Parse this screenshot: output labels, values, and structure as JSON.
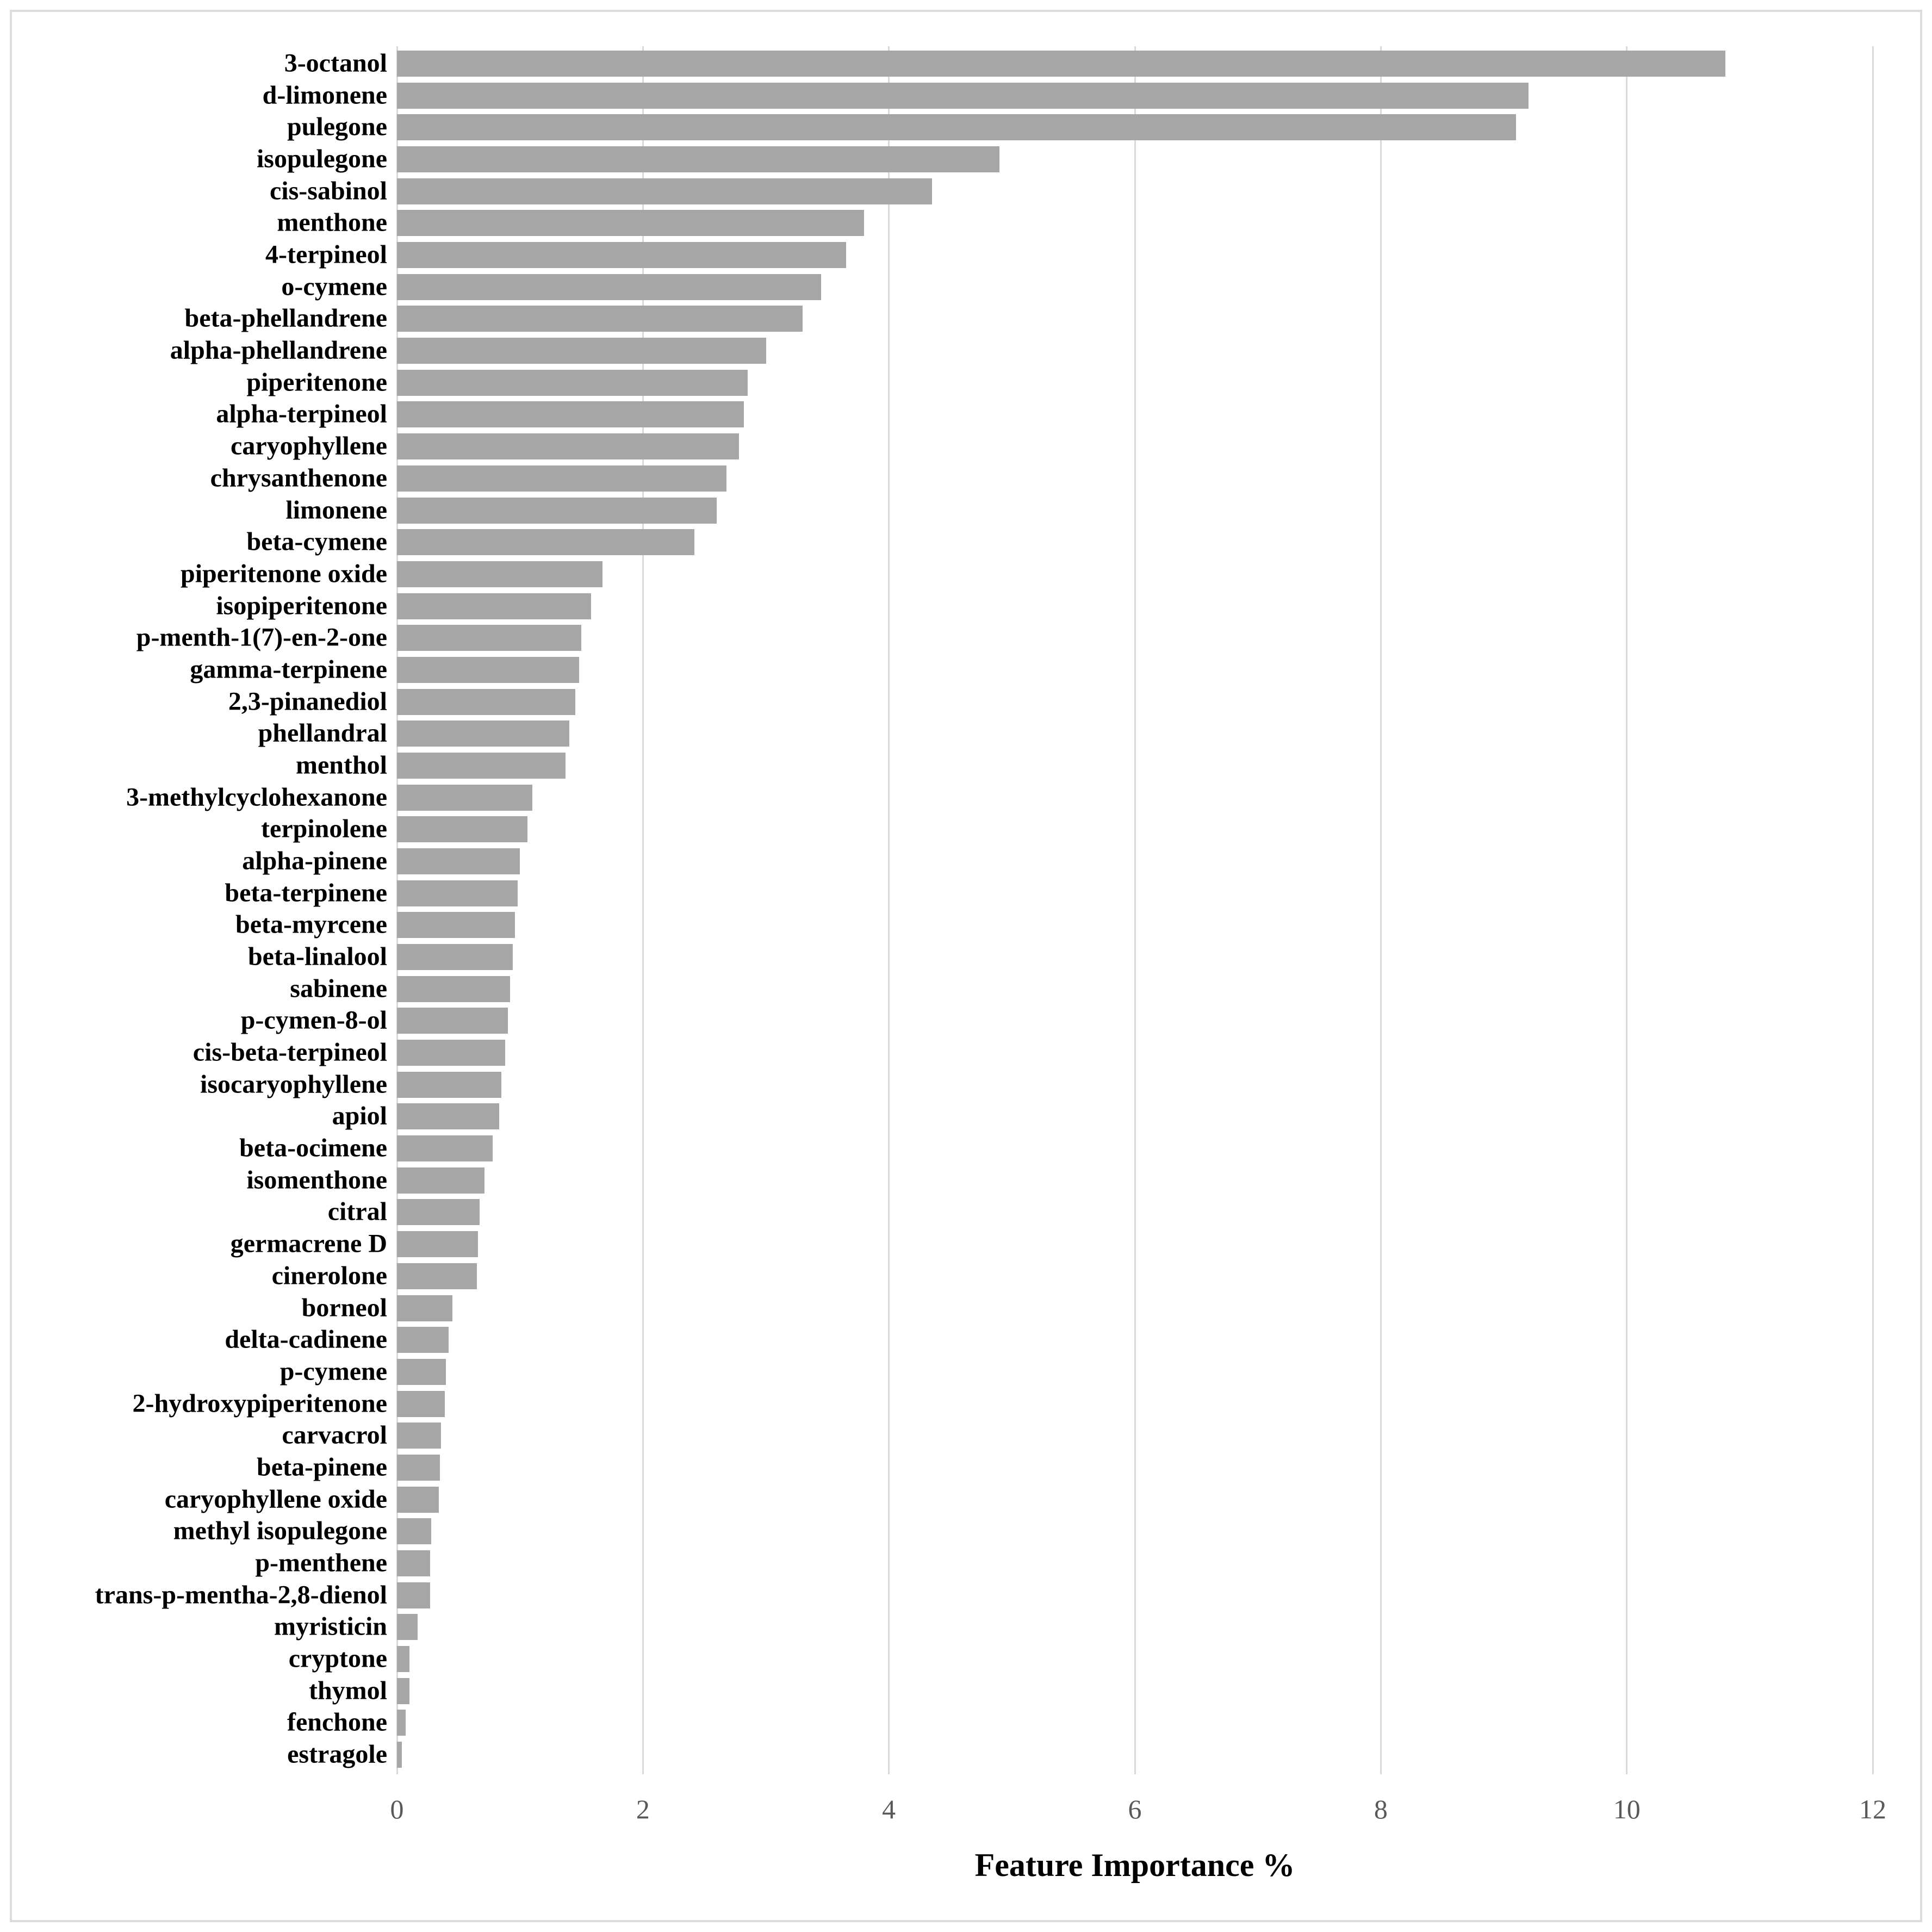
{
  "chart_data": {
    "type": "bar",
    "orientation": "horizontal",
    "title": "",
    "xlabel": "Feature Importance %",
    "ylabel": "",
    "xlim": [
      0,
      12
    ],
    "x_ticks": [
      0,
      2,
      4,
      6,
      8,
      10,
      12
    ],
    "grid": true,
    "legend": false,
    "bar_color": "#a6a6a6",
    "gridline_color": "#d9d9d9",
    "tick_label_color": "#595959",
    "axis_title_color": "#000000",
    "categories": [
      "3-octanol",
      "d-limonene",
      "pulegone",
      "isopulegone",
      "cis-sabinol",
      "menthone",
      "4-terpineol",
      "o-cymene",
      "beta-phellandrene",
      "alpha-phellandrene",
      "piperitenone",
      "alpha-terpineol",
      "caryophyllene",
      "chrysanthenone",
      "limonene",
      "beta-cymene",
      "piperitenone oxide",
      "isopiperitenone",
      "p-menth-1(7)-en-2-one",
      "gamma-terpinene",
      "2,3-pinanediol",
      "phellandral",
      "menthol",
      "3-methylcyclohexanone",
      "terpinolene",
      "alpha-pinene",
      "beta-terpinene",
      "beta-myrcene",
      "beta-linalool",
      "sabinene",
      "p-cymen-8-ol",
      "cis-beta-terpineol",
      "isocaryophyllene",
      "apiol",
      "beta-ocimene",
      "isomenthone",
      "citral",
      "germacrene D",
      "cinerolone",
      "borneol",
      "delta-cadinene",
      "p-cymene",
      "2-hydroxypiperitenone",
      "carvacrol",
      "beta-pinene",
      "caryophyllene oxide",
      "methyl isopulegone",
      "p-menthene",
      "trans-p-mentha-2,8-dienol",
      "myristicin",
      "cryptone",
      "thymol",
      "fenchone",
      "estragole"
    ],
    "values": [
      10.8,
      9.2,
      9.1,
      4.9,
      4.35,
      3.8,
      3.65,
      3.45,
      3.3,
      3.0,
      2.85,
      2.82,
      2.78,
      2.68,
      2.6,
      2.42,
      1.67,
      1.58,
      1.5,
      1.48,
      1.45,
      1.4,
      1.37,
      1.1,
      1.06,
      1.0,
      0.98,
      0.96,
      0.94,
      0.92,
      0.9,
      0.88,
      0.85,
      0.83,
      0.78,
      0.71,
      0.67,
      0.66,
      0.65,
      0.45,
      0.42,
      0.4,
      0.39,
      0.36,
      0.35,
      0.34,
      0.28,
      0.27,
      0.27,
      0.17,
      0.1,
      0.1,
      0.07,
      0.04
    ]
  }
}
